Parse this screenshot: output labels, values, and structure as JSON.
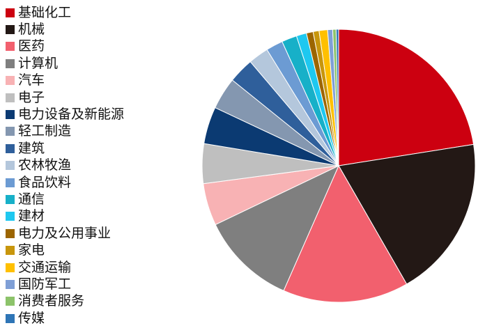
{
  "chart_data": {
    "type": "pie",
    "start": "12 o'clock, clockwise",
    "legend_position": "left",
    "categories": [
      "基础化工",
      "机械",
      "医药",
      "计算机",
      "汽车",
      "电子",
      "电力设备及新能源",
      "轻工制造",
      "建筑",
      "农林牧渔",
      "食品饮料",
      "通信",
      "建材",
      "电力及公用事业",
      "家电",
      "交通运输",
      "国防军工",
      "消费者服务",
      "传媒"
    ],
    "values": [
      22.5,
      19.2,
      14.9,
      11.3,
      5.0,
      4.7,
      4.4,
      3.8,
      3.0,
      2.4,
      2.0,
      1.8,
      1.2,
      0.8,
      0.7,
      1.0,
      0.6,
      0.4,
      0.3
    ],
    "colors": [
      "#cc0010",
      "#231815",
      "#f2606e",
      "#7f7f7f",
      "#f8b2b4",
      "#bfbfbf",
      "#0b3a72",
      "#8497b0",
      "#2f5f9b",
      "#b4c7dc",
      "#6c9bd3",
      "#17b0c8",
      "#1ec8f0",
      "#9c6500",
      "#c8960c",
      "#ffc000",
      "#7f9fd6",
      "#8cc36a",
      "#2e75b6"
    ]
  }
}
